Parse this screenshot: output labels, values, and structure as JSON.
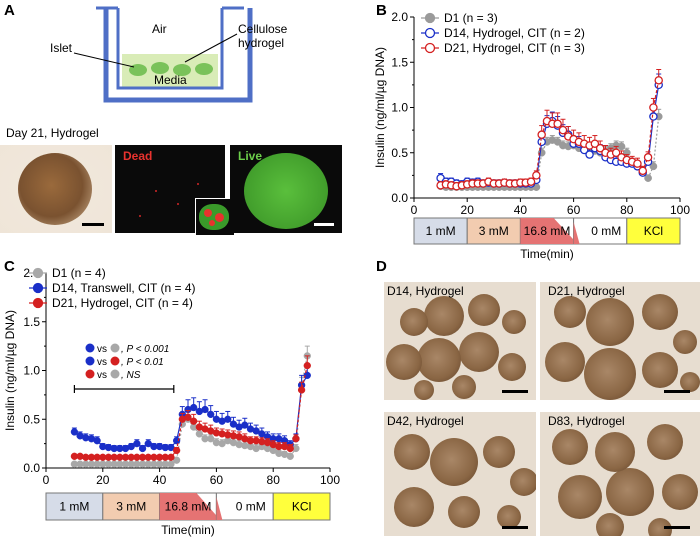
{
  "panels": {
    "A": {
      "letter": "A",
      "diagram": {
        "air": "Air",
        "islet": "Islet",
        "cellulose_line1": "Cellulose",
        "cellulose_line2": "hydrogel",
        "media": "Media"
      },
      "micro_title": "Day 21, Hydrogel",
      "dead_label": "Dead",
      "live_label": "Live",
      "colors": {
        "dead": "#e8322e",
        "live": "#6ccf4a",
        "frame": "#4f6fc6",
        "hydrogel": "#d9ecb7",
        "islet": "#7ac25a"
      }
    },
    "B": {
      "letter": "B"
    },
    "C": {
      "letter": "C"
    },
    "D": {
      "letter": "D",
      "labels": [
        "D14, Hydrogel",
        "D21, Hydrogel",
        "D42, Hydrogel",
        "D83, Hydrogel"
      ]
    }
  },
  "chart_data": [
    {
      "id": "B",
      "type": "line",
      "ylabel": "Insulin (ng/ml/µg DNA)",
      "xlabel": "Time(min)",
      "xlim": [
        0,
        100
      ],
      "ylim": [
        0,
        2.0
      ],
      "xticks": [
        "0",
        "20",
        "40",
        "60",
        "80",
        "100"
      ],
      "yticks": [
        "0.0",
        "0.5",
        "1.0",
        "1.5",
        "2.0"
      ],
      "legend": [
        "D1 (n = 3)",
        "D14, Hydrogel, CIT (n = 2)",
        "D21, Hydrogel, CIT (n = 3)"
      ],
      "x": [
        10,
        12,
        14,
        16,
        18,
        20,
        22,
        24,
        26,
        28,
        30,
        32,
        34,
        36,
        38,
        40,
        42,
        44,
        46,
        48,
        50,
        52,
        54,
        56,
        58,
        60,
        62,
        64,
        66,
        68,
        70,
        72,
        74,
        76,
        78,
        80,
        82,
        84,
        86,
        88,
        90,
        92
      ],
      "series": [
        {
          "name": "D1 (n = 3)",
          "color": "#9a9a9a",
          "marker": "filled",
          "values": [
            0.13,
            0.12,
            0.12,
            0.12,
            0.12,
            0.12,
            0.12,
            0.12,
            0.12,
            0.12,
            0.12,
            0.12,
            0.12,
            0.12,
            0.12,
            0.12,
            0.12,
            0.12,
            0.12,
            0.5,
            0.62,
            0.64,
            0.62,
            0.58,
            0.57,
            0.58,
            0.55,
            0.54,
            0.55,
            0.52,
            0.5,
            0.52,
            0.55,
            0.58,
            0.57,
            0.5,
            0.4,
            0.35,
            0.3,
            0.22,
            0.35,
            0.9
          ],
          "errors": [
            0.04,
            0.03,
            0.03,
            0.03,
            0.03,
            0.03,
            0.03,
            0.03,
            0.03,
            0.03,
            0.03,
            0.03,
            0.03,
            0.03,
            0.03,
            0.03,
            0.03,
            0.03,
            0.03,
            0.05,
            0.05,
            0.05,
            0.05,
            0.05,
            0.05,
            0.05,
            0.05,
            0.05,
            0.05,
            0.05,
            0.05,
            0.05,
            0.05,
            0.05,
            0.05,
            0.05,
            0.04,
            0.04,
            0.04,
            0.03,
            0.05,
            0.08
          ]
        },
        {
          "name": "D14, Hydrogel, CIT (n = 2)",
          "color": "#1a2fc8",
          "marker": "open",
          "values": [
            0.22,
            0.18,
            0.18,
            0.16,
            0.15,
            0.18,
            0.17,
            0.18,
            0.16,
            0.17,
            0.16,
            0.16,
            0.17,
            0.16,
            0.16,
            0.16,
            0.16,
            0.16,
            0.2,
            0.62,
            0.82,
            0.85,
            0.8,
            0.72,
            0.7,
            0.6,
            0.6,
            0.53,
            0.48,
            0.55,
            0.52,
            0.45,
            0.42,
            0.4,
            0.4,
            0.38,
            0.38,
            0.35,
            0.28,
            0.4,
            0.9,
            1.25
          ],
          "errors": [
            0.05,
            0.04,
            0.04,
            0.04,
            0.04,
            0.04,
            0.04,
            0.04,
            0.04,
            0.04,
            0.04,
            0.04,
            0.04,
            0.04,
            0.04,
            0.04,
            0.04,
            0.04,
            0.04,
            0.08,
            0.09,
            0.1,
            0.1,
            0.09,
            0.09,
            0.08,
            0.08,
            0.07,
            0.07,
            0.07,
            0.07,
            0.07,
            0.06,
            0.06,
            0.06,
            0.06,
            0.05,
            0.05,
            0.04,
            0.05,
            0.08,
            0.12
          ]
        },
        {
          "name": "D21, Hydrogel, CIT (n = 3)",
          "color": "#d42020",
          "marker": "open",
          "values": [
            0.14,
            0.15,
            0.14,
            0.13,
            0.14,
            0.15,
            0.16,
            0.16,
            0.16,
            0.18,
            0.16,
            0.16,
            0.17,
            0.16,
            0.16,
            0.17,
            0.17,
            0.18,
            0.25,
            0.7,
            0.85,
            0.82,
            0.82,
            0.75,
            0.68,
            0.65,
            0.62,
            0.6,
            0.58,
            0.6,
            0.55,
            0.5,
            0.48,
            0.5,
            0.45,
            0.42,
            0.4,
            0.38,
            0.3,
            0.45,
            1.0,
            1.3
          ],
          "errors": [
            0.04,
            0.04,
            0.04,
            0.04,
            0.04,
            0.04,
            0.04,
            0.04,
            0.04,
            0.04,
            0.04,
            0.04,
            0.04,
            0.04,
            0.04,
            0.04,
            0.04,
            0.04,
            0.05,
            0.1,
            0.12,
            0.12,
            0.12,
            0.12,
            0.11,
            0.1,
            0.1,
            0.09,
            0.09,
            0.09,
            0.08,
            0.08,
            0.07,
            0.07,
            0.07,
            0.06,
            0.06,
            0.06,
            0.05,
            0.06,
            0.1,
            0.12
          ]
        }
      ],
      "conditions": [
        {
          "label": "1 mM",
          "from": 0,
          "to": 20,
          "color": "#d6dce8"
        },
        {
          "label": "3 mM",
          "from": 20,
          "to": 40,
          "color": "#f2ccb0"
        },
        {
          "label": "16.8 mM",
          "from": 40,
          "to": 60,
          "color": "#e57373"
        },
        {
          "label": "0 mM",
          "from": 60,
          "to": 80,
          "color": "#ffffff"
        },
        {
          "label": "KCl",
          "from": 80,
          "to": 100,
          "color": "#ffff3c"
        }
      ]
    },
    {
      "id": "C",
      "type": "line",
      "ylabel": "Insulin (ng/ml/µg DNA)",
      "xlabel": "Time(min)",
      "xlim": [
        0,
        100
      ],
      "ylim": [
        0,
        2.0
      ],
      "xticks": [
        "0",
        "20",
        "40",
        "60",
        "80",
        "100"
      ],
      "yticks": [
        "0.0",
        "0.5",
        "1.0",
        "1.5",
        "2.0"
      ],
      "legend": [
        "D1 (n = 4)",
        "D14, Transwell, CIT (n = 4)",
        "D21, Hydrogel, CIT (n = 4)"
      ],
      "x": [
        10,
        12,
        14,
        16,
        18,
        20,
        22,
        24,
        26,
        28,
        30,
        32,
        34,
        36,
        38,
        40,
        42,
        44,
        46,
        48,
        50,
        52,
        54,
        56,
        58,
        60,
        62,
        64,
        66,
        68,
        70,
        72,
        74,
        76,
        78,
        80,
        82,
        84,
        86,
        88,
        90,
        92
      ],
      "series": [
        {
          "name": "D1 (n = 4)",
          "color": "#a8a8a8",
          "values": [
            0.04,
            0.04,
            0.04,
            0.04,
            0.04,
            0.04,
            0.04,
            0.04,
            0.04,
            0.04,
            0.04,
            0.04,
            0.04,
            0.04,
            0.04,
            0.04,
            0.04,
            0.04,
            0.08,
            0.45,
            0.5,
            0.42,
            0.35,
            0.3,
            0.3,
            0.26,
            0.25,
            0.28,
            0.26,
            0.24,
            0.23,
            0.22,
            0.2,
            0.22,
            0.2,
            0.18,
            0.15,
            0.14,
            0.12,
            0.2,
            0.85,
            1.15
          ],
          "errors": [
            0.02,
            0.02,
            0.02,
            0.02,
            0.02,
            0.02,
            0.02,
            0.02,
            0.02,
            0.02,
            0.02,
            0.02,
            0.02,
            0.02,
            0.02,
            0.02,
            0.02,
            0.02,
            0.02,
            0.05,
            0.05,
            0.05,
            0.04,
            0.04,
            0.04,
            0.04,
            0.04,
            0.04,
            0.04,
            0.04,
            0.04,
            0.04,
            0.04,
            0.04,
            0.04,
            0.03,
            0.03,
            0.03,
            0.03,
            0.04,
            0.08,
            0.1
          ]
        },
        {
          "name": "D14, Transwell, CIT (n = 4)",
          "color": "#1a2fc8",
          "values": [
            0.37,
            0.33,
            0.31,
            0.3,
            0.28,
            0.22,
            0.21,
            0.2,
            0.2,
            0.2,
            0.22,
            0.25,
            0.2,
            0.25,
            0.22,
            0.22,
            0.21,
            0.21,
            0.28,
            0.55,
            0.6,
            0.62,
            0.58,
            0.6,
            0.55,
            0.5,
            0.48,
            0.5,
            0.45,
            0.42,
            0.44,
            0.4,
            0.38,
            0.35,
            0.32,
            0.3,
            0.3,
            0.28,
            0.24,
            0.3,
            0.85,
            0.95
          ],
          "errors": [
            0.04,
            0.04,
            0.04,
            0.04,
            0.04,
            0.03,
            0.03,
            0.03,
            0.03,
            0.03,
            0.03,
            0.04,
            0.03,
            0.04,
            0.03,
            0.03,
            0.03,
            0.03,
            0.04,
            0.08,
            0.1,
            0.1,
            0.1,
            0.1,
            0.09,
            0.08,
            0.08,
            0.08,
            0.07,
            0.07,
            0.07,
            0.06,
            0.06,
            0.06,
            0.05,
            0.05,
            0.05,
            0.05,
            0.04,
            0.05,
            0.1,
            0.12
          ]
        },
        {
          "name": "D21, Hydrogel, CIT (n = 4)",
          "color": "#d42020",
          "values": [
            0.12,
            0.12,
            0.11,
            0.11,
            0.11,
            0.11,
            0.11,
            0.11,
            0.11,
            0.11,
            0.11,
            0.11,
            0.11,
            0.11,
            0.11,
            0.11,
            0.11,
            0.11,
            0.18,
            0.5,
            0.52,
            0.48,
            0.42,
            0.4,
            0.38,
            0.36,
            0.35,
            0.34,
            0.33,
            0.32,
            0.3,
            0.28,
            0.28,
            0.27,
            0.26,
            0.24,
            0.22,
            0.22,
            0.2,
            0.3,
            0.8,
            1.05
          ],
          "errors": [
            0.02,
            0.02,
            0.02,
            0.02,
            0.02,
            0.02,
            0.02,
            0.02,
            0.02,
            0.02,
            0.02,
            0.02,
            0.02,
            0.02,
            0.02,
            0.02,
            0.02,
            0.02,
            0.03,
            0.06,
            0.07,
            0.07,
            0.06,
            0.06,
            0.06,
            0.05,
            0.05,
            0.05,
            0.05,
            0.05,
            0.05,
            0.04,
            0.04,
            0.04,
            0.04,
            0.04,
            0.04,
            0.04,
            0.04,
            0.04,
            0.08,
            0.1
          ]
        }
      ],
      "stats": [
        {
          "fill": "#1a2fc8",
          "vs_fill": "#a8a8a8",
          "text": "P < 0.001"
        },
        {
          "fill": "#1a2fc8",
          "vs_fill": "#d42020",
          "text": "P < 0.01"
        },
        {
          "fill": "#d42020",
          "vs_fill": "#a8a8a8",
          "text": "NS"
        }
      ],
      "stats_vs": "vs",
      "stats_bracket": [
        10,
        45
      ],
      "conditions": [
        {
          "label": "1 mM",
          "from": 0,
          "to": 20,
          "color": "#d6dce8"
        },
        {
          "label": "3 mM",
          "from": 20,
          "to": 40,
          "color": "#f2ccb0"
        },
        {
          "label": "16.8 mM",
          "from": 40,
          "to": 60,
          "color": "#e57373"
        },
        {
          "label": "0 mM",
          "from": 60,
          "to": 80,
          "color": "#ffffff"
        },
        {
          "label": "KCl",
          "from": 80,
          "to": 100,
          "color": "#ffff3c"
        }
      ]
    }
  ]
}
